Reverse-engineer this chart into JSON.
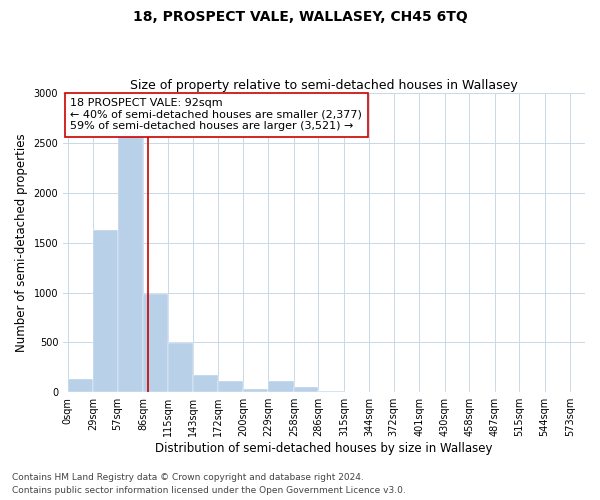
{
  "title": "18, PROSPECT VALE, WALLASEY, CH45 6TQ",
  "subtitle": "Size of property relative to semi-detached houses in Wallasey",
  "xlabel": "Distribution of semi-detached houses by size in Wallasey",
  "ylabel": "Number of semi-detached properties",
  "footnote1": "Contains HM Land Registry data © Crown copyright and database right 2024.",
  "footnote2": "Contains public sector information licensed under the Open Government Licence v3.0.",
  "annotation_line1": "18 PROSPECT VALE: 92sqm",
  "annotation_line2": "← 40% of semi-detached houses are smaller (2,377)",
  "annotation_line3": "59% of semi-detached houses are larger (3,521) →",
  "property_size": 92,
  "bar_edges": [
    0,
    29,
    57,
    86,
    115,
    143,
    172,
    200,
    229,
    258,
    286,
    315,
    344,
    372,
    401,
    430,
    458,
    487,
    515,
    544,
    573
  ],
  "bar_heights": [
    130,
    1630,
    2700,
    990,
    490,
    175,
    115,
    30,
    115,
    55,
    10,
    5,
    3,
    2,
    2,
    2,
    1,
    1,
    1,
    1
  ],
  "bar_color": "#b8d0e8",
  "line_color": "#cc0000",
  "annotation_box_edgecolor": "#cc0000",
  "annotation_bg": "#ffffff",
  "grid_color": "#c8d8e8",
  "ylim": [
    0,
    3000
  ],
  "yticks": [
    0,
    500,
    1000,
    1500,
    2000,
    2500,
    3000
  ],
  "bg_color": "#ffffff",
  "title_fontsize": 10,
  "subtitle_fontsize": 9,
  "axis_label_fontsize": 8.5,
  "tick_fontsize": 7,
  "annotation_fontsize": 8,
  "footnote_fontsize": 6.5
}
